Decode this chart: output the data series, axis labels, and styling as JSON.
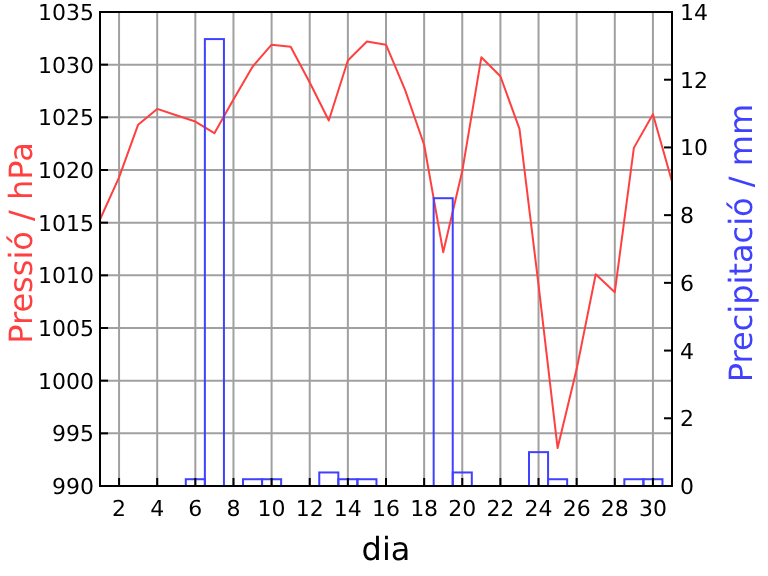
{
  "chart_data": {
    "type": "line",
    "xlabel": "dia",
    "ylabel": "Pressió / hPa",
    "y2label": "Precipitació / mm",
    "x": [
      1,
      2,
      3,
      4,
      5,
      6,
      7,
      8,
      9,
      10,
      11,
      12,
      13,
      14,
      15,
      16,
      17,
      18,
      19,
      20,
      21,
      22,
      23,
      24,
      25,
      26,
      27,
      28,
      29,
      30,
      31
    ],
    "xlim": [
      1,
      31
    ],
    "xticks": [
      2,
      4,
      6,
      8,
      10,
      12,
      14,
      16,
      18,
      20,
      22,
      24,
      26,
      28,
      30
    ],
    "ylim": [
      990,
      1035
    ],
    "yticks": [
      990,
      995,
      1000,
      1005,
      1010,
      1015,
      1020,
      1025,
      1030,
      1035
    ],
    "y2lim": [
      0,
      14
    ],
    "y2ticks": [
      0,
      2,
      4,
      6,
      8,
      10,
      12,
      14
    ],
    "grid": true,
    "series": [
      {
        "color": "#ff4040",
        "values": [
          1015.3,
          1019.3,
          1024.3,
          1025.8,
          1025.2,
          1024.6,
          1023.5,
          1026.7,
          1029.8,
          1031.9,
          1031.7,
          1028.3,
          1024.7,
          1030.4,
          1032.2,
          1031.9,
          1027.6,
          1022.4,
          1012.2,
          1019.9,
          1030.7,
          1028.9,
          1023.9,
          1009.1,
          993.6,
          1001.1,
          1010.1,
          1008.4,
          1022.1,
          1025.3,
          1018.9
        ]
      },
      {
        "type": "bar",
        "axis": "y2",
        "color": "#4040ff",
        "x": [
          6,
          7,
          9,
          10,
          13,
          14,
          15,
          19,
          20,
          24,
          25,
          29,
          30
        ],
        "values": [
          0.2,
          13.2,
          0.2,
          0.2,
          0.4,
          0.2,
          0.2,
          8.5,
          0.4,
          1.0,
          0.2,
          0.2,
          0.2
        ]
      }
    ]
  }
}
